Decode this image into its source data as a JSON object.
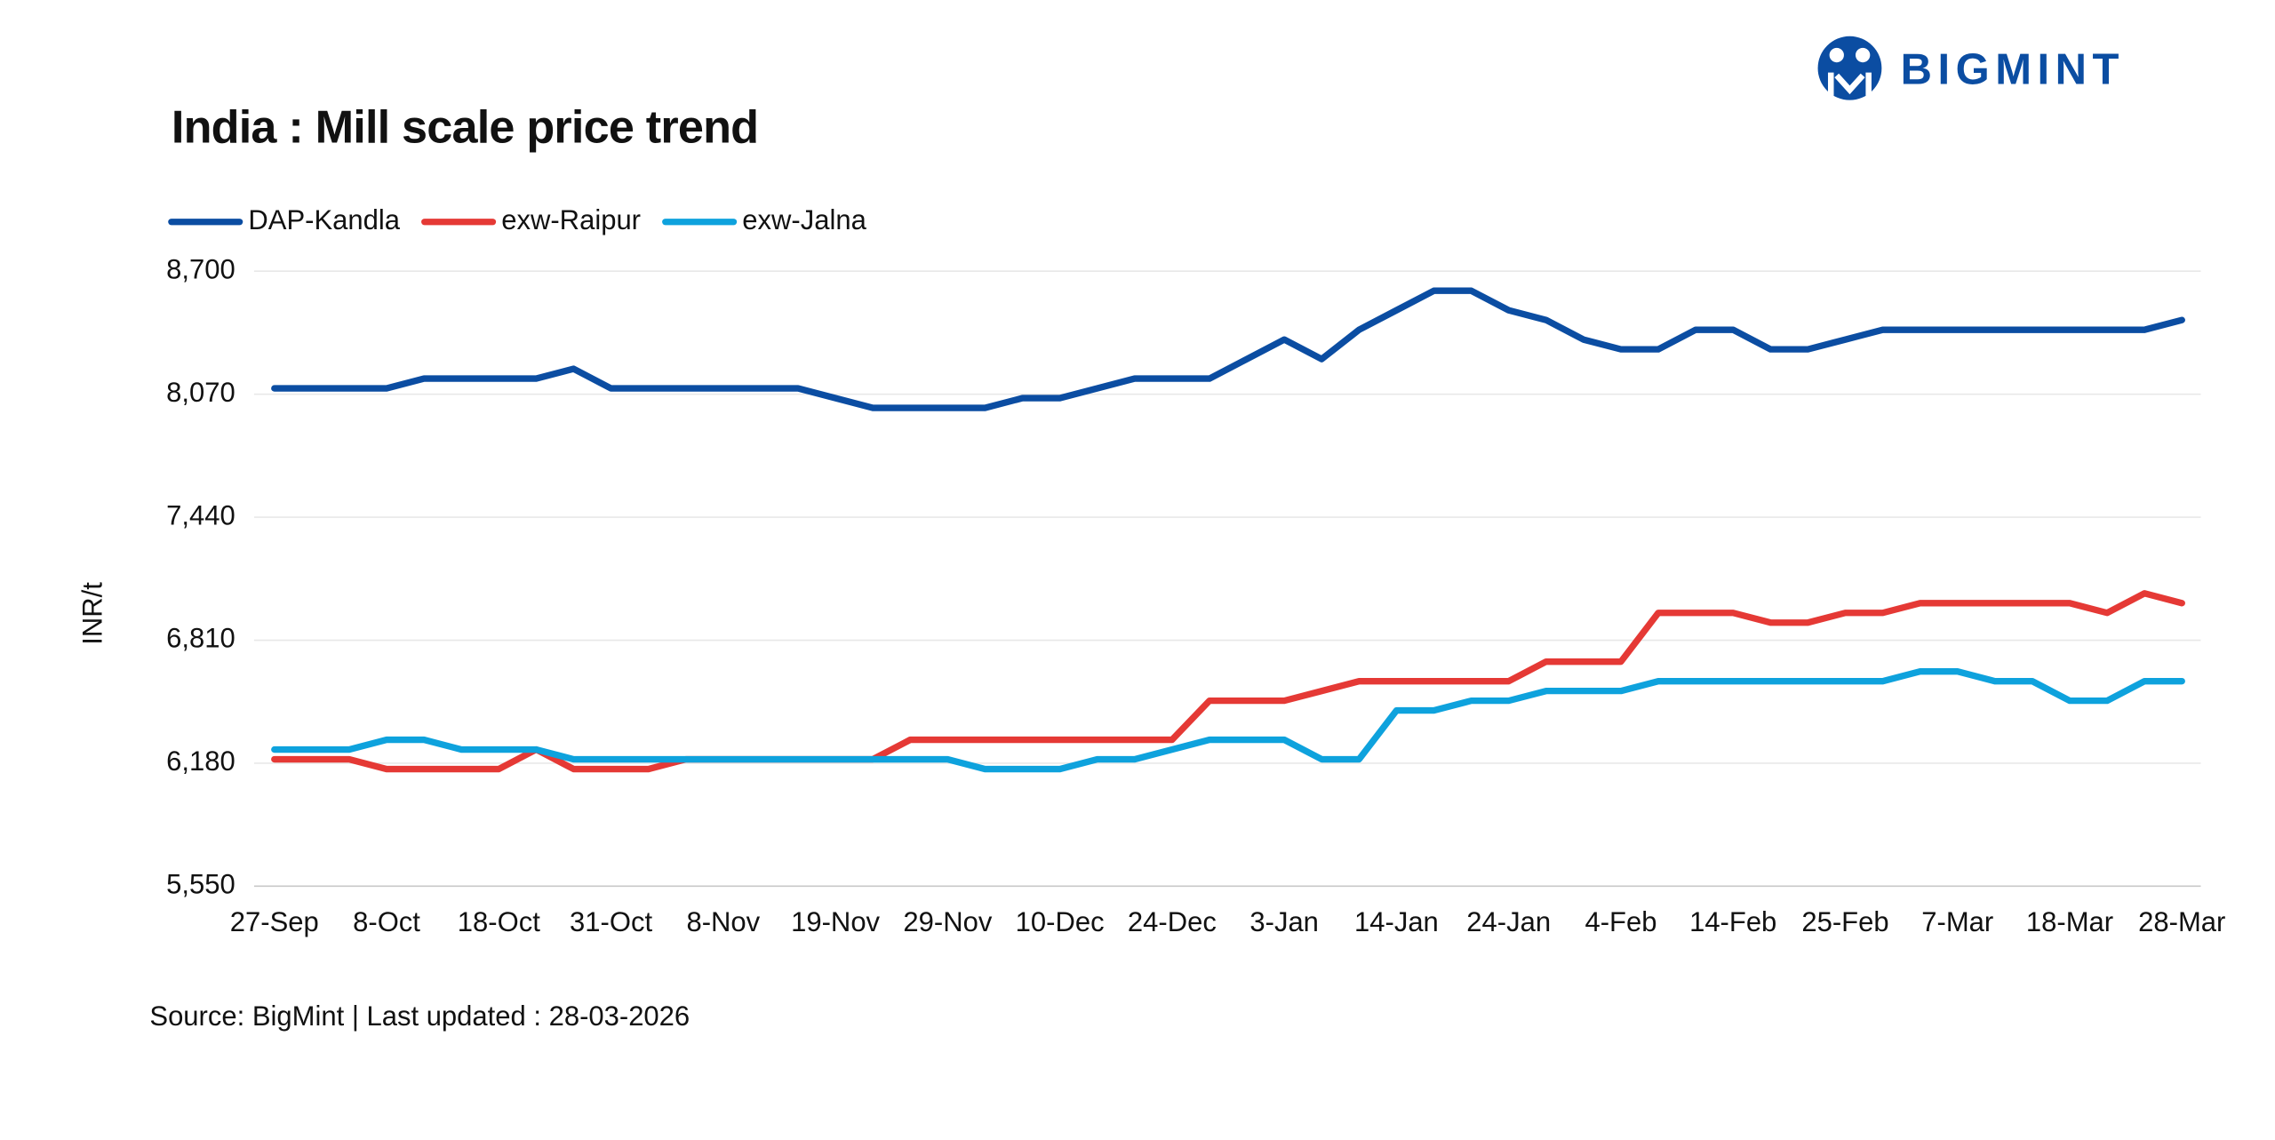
{
  "chart_data": {
    "type": "line",
    "logo": "BIGMINT",
    "title": "India : Mill scale price trend",
    "y_label": "INR/t",
    "source": "Source: BigMint | Last updated : 28-03-2026",
    "categories": [
      "27-Sep",
      null,
      null,
      "8-Oct",
      null,
      null,
      "18-Oct",
      null,
      null,
      "31-Oct",
      null,
      null,
      "8-Nov",
      null,
      null,
      "19-Nov",
      null,
      null,
      "29-Nov",
      null,
      null,
      "10-Dec",
      null,
      null,
      "24-Dec",
      null,
      null,
      "3-Jan",
      null,
      null,
      "14-Jan",
      null,
      null,
      "24-Jan",
      null,
      null,
      "4-Feb",
      null,
      null,
      "14-Feb",
      null,
      null,
      "25-Feb",
      null,
      null,
      "7-Mar",
      null,
      null,
      "18-Mar",
      null,
      null,
      "28-Mar"
    ],
    "series": [
      {
        "name": "DAP-Kandla",
        "color": "#0b4da2",
        "values": [
          8100,
          8100,
          8100,
          8100,
          8150,
          8150,
          8150,
          8150,
          8200,
          8100,
          8100,
          8100,
          8100,
          8100,
          8100,
          8050,
          8000,
          8000,
          8000,
          8000,
          8050,
          8050,
          8100,
          8150,
          8150,
          8150,
          8250,
          8350,
          8250,
          8400,
          8500,
          8600,
          8600,
          8500,
          8450,
          8350,
          8300,
          8300,
          8400,
          8400,
          8300,
          8300,
          8350,
          8400,
          8400,
          8400,
          8400,
          8400,
          8400,
          8400,
          8400,
          8450
        ]
      },
      {
        "name": "exw-Raipur",
        "color": "#e53935",
        "values": [
          6200,
          6200,
          6200,
          6150,
          6150,
          6150,
          6150,
          6250,
          6150,
          6150,
          6150,
          6200,
          6200,
          6200,
          6200,
          6200,
          6200,
          6300,
          6300,
          6300,
          6300,
          6300,
          6300,
          6300,
          6300,
          6500,
          6500,
          6500,
          6550,
          6600,
          6600,
          6600,
          6600,
          6600,
          6700,
          6700,
          6700,
          6950,
          6950,
          6950,
          6900,
          6900,
          6950,
          6950,
          7000,
          7000,
          7000,
          7000,
          7000,
          6950,
          7050,
          7000
        ]
      },
      {
        "name": "exw-Jalna",
        "color": "#0ea2dd",
        "values": [
          6250,
          6250,
          6250,
          6300,
          6300,
          6250,
          6250,
          6250,
          6200,
          6200,
          6200,
          6200,
          6200,
          6200,
          6200,
          6200,
          6200,
          6200,
          6200,
          6150,
          6150,
          6150,
          6200,
          6200,
          6250,
          6300,
          6300,
          6300,
          6200,
          6200,
          6450,
          6450,
          6500,
          6500,
          6550,
          6550,
          6550,
          6600,
          6600,
          6600,
          6600,
          6600,
          6600,
          6600,
          6650,
          6650,
          6600,
          6600,
          6500,
          6500,
          6600,
          6600
        ]
      }
    ],
    "ylim": [
      5550,
      8700
    ],
    "yticks": [
      {
        "value": 5550,
        "label": "5,550"
      },
      {
        "value": 6180,
        "label": "6,180"
      },
      {
        "value": 6810,
        "label": "6,810"
      },
      {
        "value": 7440,
        "label": "7,440"
      },
      {
        "value": 8070,
        "label": "8,070"
      },
      {
        "value": 8700,
        "label": "8,700"
      }
    ],
    "grid": true,
    "legend": "top"
  }
}
